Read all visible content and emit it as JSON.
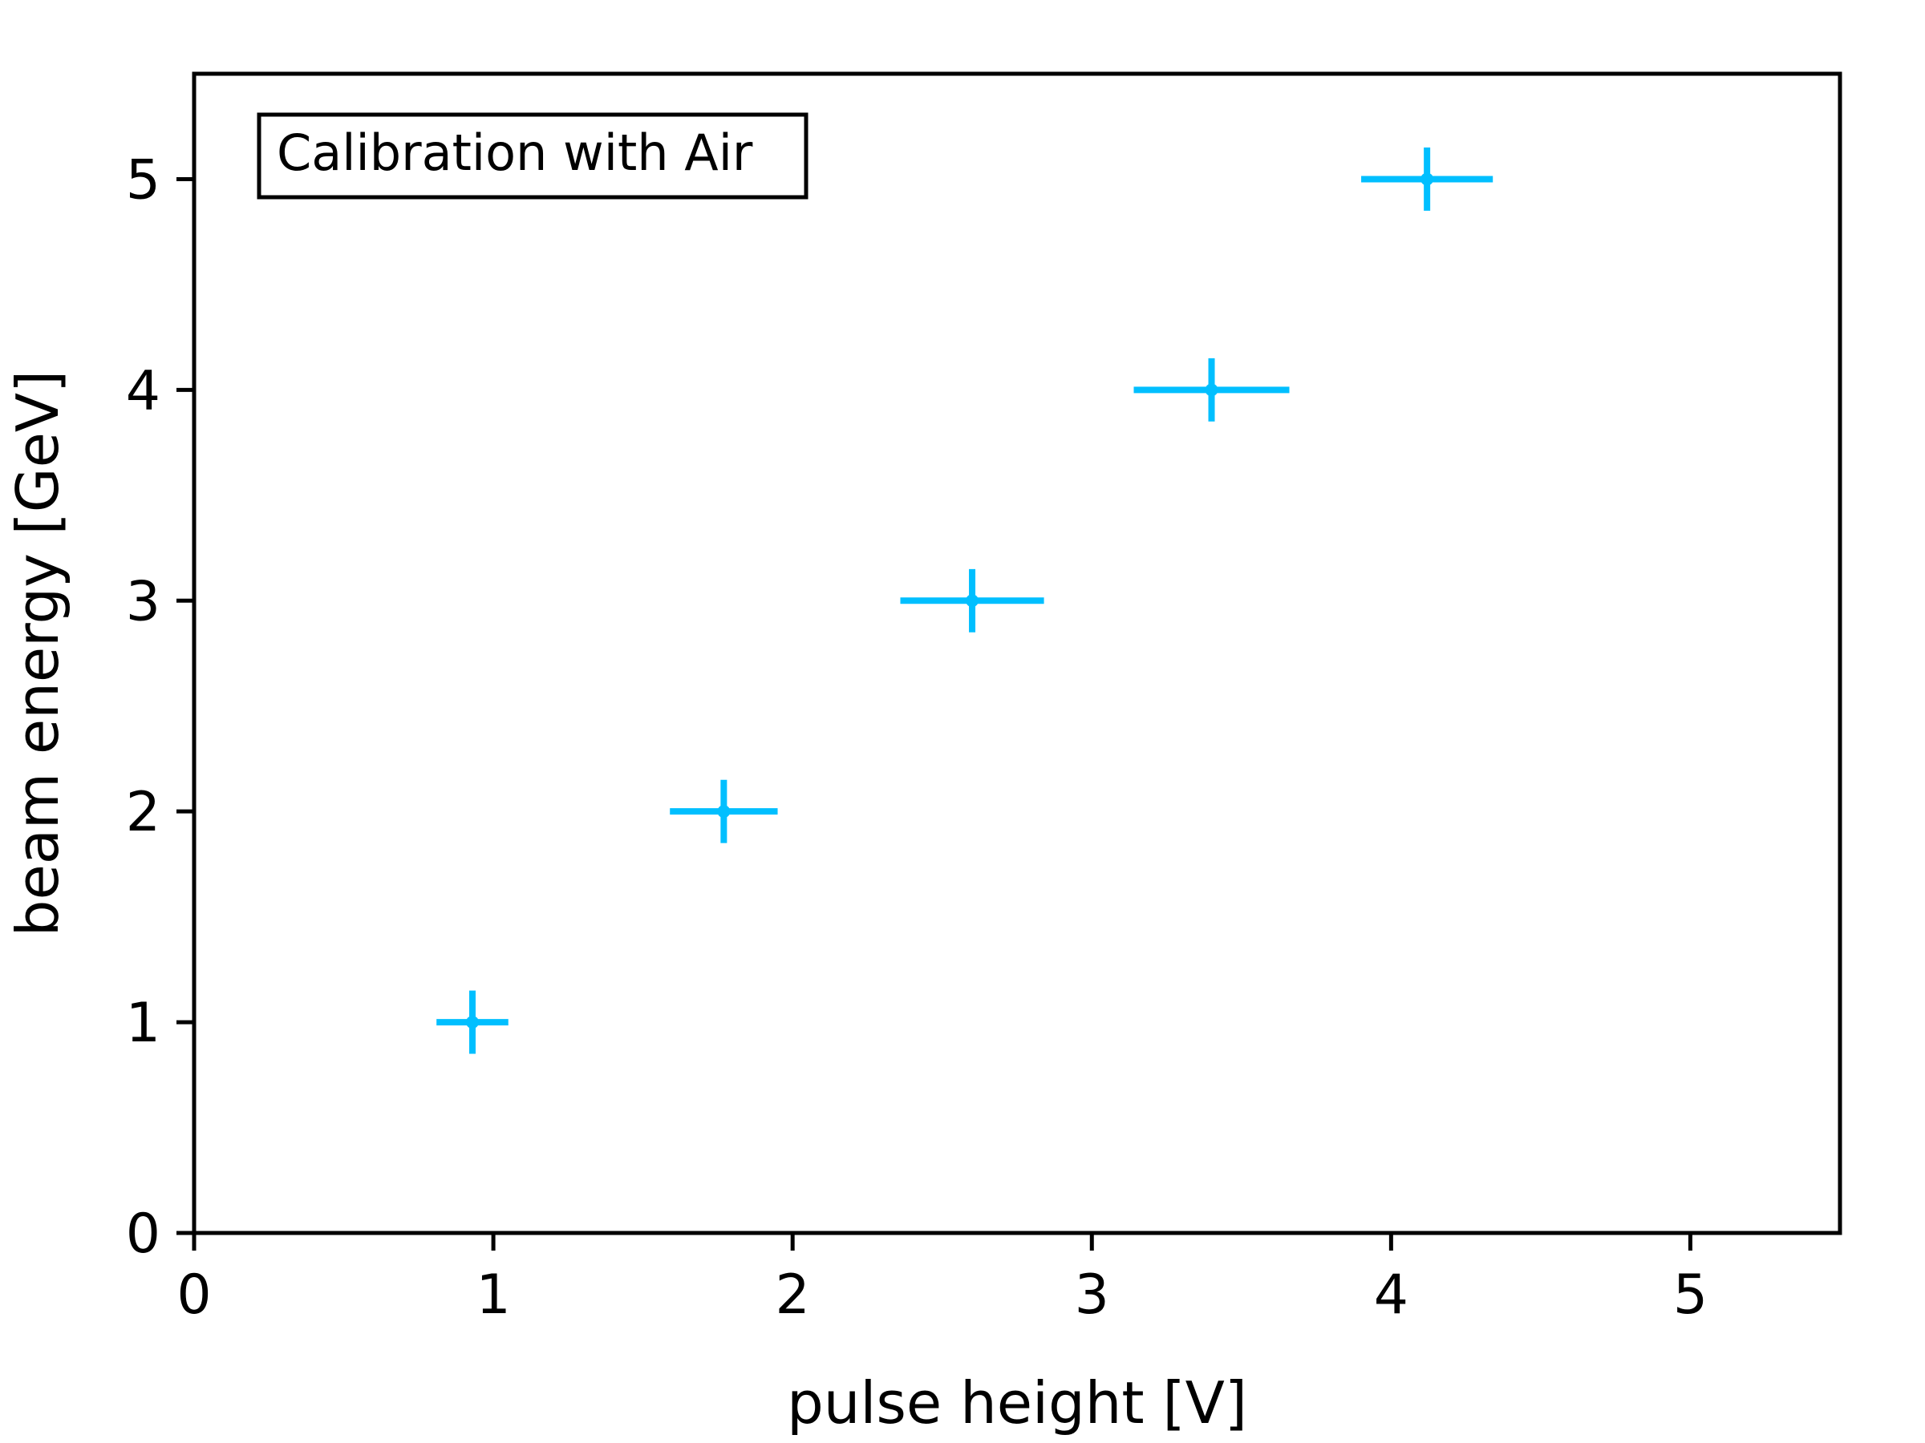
{
  "chart_data": {
    "type": "scatter",
    "xlabel": "pulse height [V]",
    "ylabel": "beam energy [GeV]",
    "xlim": [
      0,
      5.5
    ],
    "ylim": [
      0,
      5.5
    ],
    "x_ticks": [
      0,
      1,
      2,
      3,
      4,
      5
    ],
    "y_ticks": [
      0,
      1,
      2,
      3,
      4,
      5
    ],
    "x_tick_labels": [
      "0",
      "1",
      "2",
      "3",
      "4",
      "5"
    ],
    "y_tick_labels": [
      "0",
      "1",
      "2",
      "3",
      "4",
      "5"
    ],
    "annotation": "Calibration with Air",
    "grid": false,
    "color": "#00BFFF",
    "series": [
      {
        "points": [
          {
            "x": 0.93,
            "y": 1,
            "xerr": 0.12,
            "yerr": 0.15
          },
          {
            "x": 1.77,
            "y": 2,
            "xerr": 0.18,
            "yerr": 0.15
          },
          {
            "x": 2.6,
            "y": 3,
            "xerr": 0.24,
            "yerr": 0.15
          },
          {
            "x": 3.4,
            "y": 4,
            "xerr": 0.26,
            "yerr": 0.15
          },
          {
            "x": 4.12,
            "y": 5,
            "xerr": 0.22,
            "yerr": 0.15
          }
        ]
      }
    ]
  }
}
